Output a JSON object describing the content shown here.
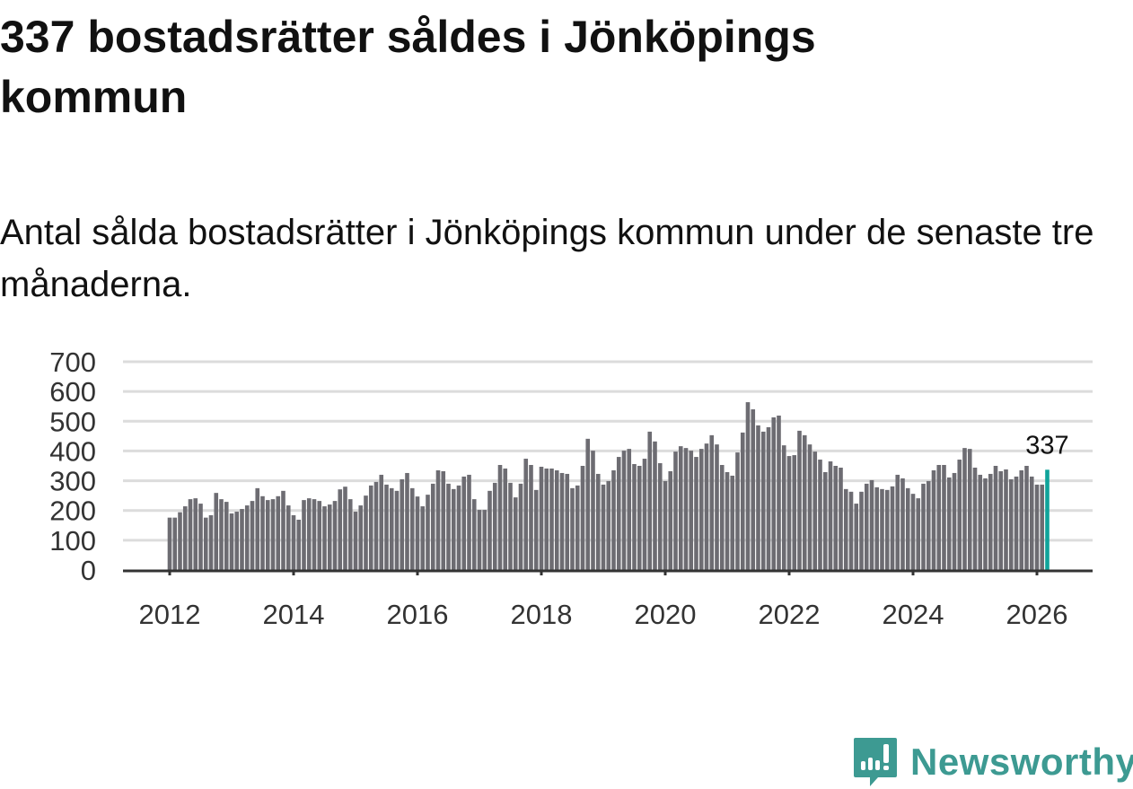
{
  "header": {
    "title": "337 bostadsrätter såldes i Jönköpings kommun",
    "subtitle": "Antal sålda bostadsrätter i Jönköpings kommun under de senaste tre månaderna."
  },
  "brand": {
    "name": "Newsworthy",
    "color": "#3d9a92",
    "icon": "newsworthy-logo-icon"
  },
  "chart_data": {
    "type": "bar",
    "title": "Antal sålda bostadsrätter i Jönköpings kommun",
    "xlabel": "",
    "ylabel": "",
    "start": {
      "year": 2012,
      "month": 1
    },
    "frequency": "monthly",
    "ylim": [
      0,
      700
    ],
    "yticks": [
      0,
      100,
      200,
      300,
      400,
      500,
      600,
      700
    ],
    "xticks": [
      "2012",
      "2014",
      "2016",
      "2018",
      "2020",
      "2022",
      "2024",
      "2026"
    ],
    "grid": true,
    "bar_color": "#6d6c72",
    "highlight_color": "#0fa39a",
    "highlight_label": "337",
    "values": [
      176,
      176,
      194,
      214,
      238,
      241,
      223,
      176,
      184,
      259,
      238,
      229,
      190,
      196,
      205,
      217,
      232,
      275,
      248,
      235,
      238,
      248,
      266,
      217,
      184,
      169,
      235,
      241,
      238,
      232,
      214,
      220,
      232,
      271,
      280,
      238,
      196,
      217,
      250,
      284,
      296,
      320,
      287,
      275,
      266,
      305,
      326,
      275,
      247,
      214,
      253,
      290,
      335,
      332,
      290,
      272,
      284,
      314,
      320,
      238,
      202,
      202,
      266,
      293,
      353,
      341,
      293,
      244,
      290,
      374,
      353,
      269,
      347,
      341,
      341,
      335,
      326,
      323,
      275,
      284,
      350,
      441,
      401,
      323,
      287,
      299,
      335,
      380,
      401,
      407,
      356,
      350,
      374,
      465,
      432,
      359,
      299,
      332,
      398,
      416,
      410,
      401,
      380,
      407,
      425,
      453,
      422,
      353,
      329,
      317,
      395,
      462,
      564,
      540,
      486,
      465,
      480,
      513,
      519,
      419,
      383,
      386,
      468,
      453,
      422,
      398,
      371,
      329,
      365,
      350,
      344,
      272,
      263,
      223,
      263,
      290,
      302,
      278,
      272,
      269,
      281,
      320,
      308,
      275,
      256,
      241,
      290,
      299,
      335,
      353,
      353,
      311,
      326,
      371,
      410,
      407,
      344,
      320,
      308,
      323,
      350,
      332,
      338,
      305,
      314,
      335,
      350,
      314,
      287,
      287,
      337
    ]
  }
}
